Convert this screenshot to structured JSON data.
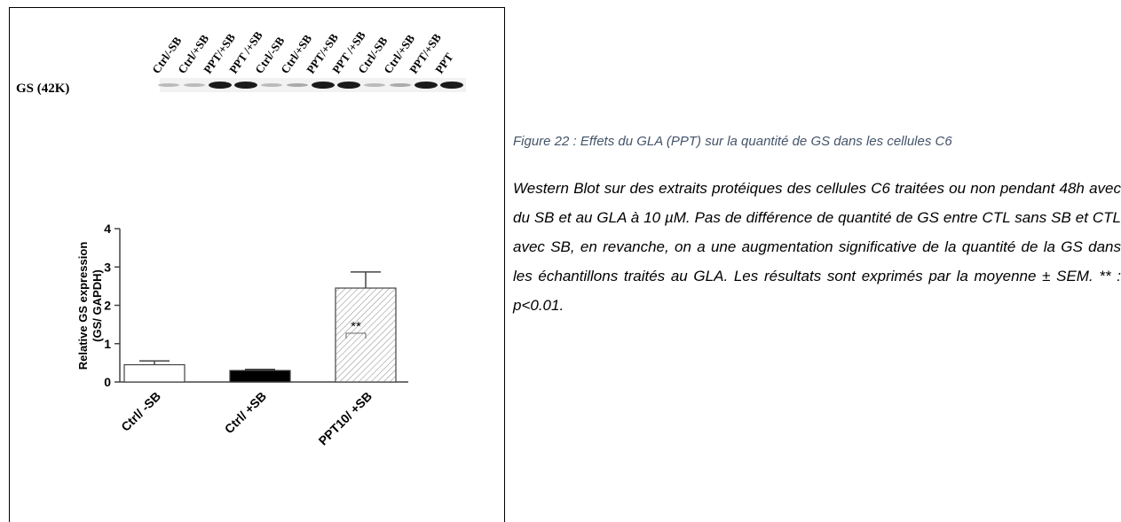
{
  "blot": {
    "label": "GS (42K)",
    "lanes": [
      "Ctrl/-SB",
      "Ctrl/+SB",
      "PPT/+SB",
      "PPT /+SB",
      "Ctrl/-SB",
      "Ctrl/+SB",
      "PPT/+SB",
      "PPT /+SB",
      "Ctrl/-SB",
      "Ctrl/+SB",
      "PPT/+SB",
      "PPT"
    ]
  },
  "chart_data": {
    "type": "bar",
    "ylabel": [
      "Relative GS expression",
      "(GS/ GAPDH)"
    ],
    "categories": [
      "Ctrl/ -SB",
      "Ctrl/ +SB",
      "PPT10/ +SB"
    ],
    "values": [
      0.45,
      0.3,
      2.45
    ],
    "errors": [
      0.1,
      0.03,
      0.42
    ],
    "colors": [
      "#ffffff",
      "#000000",
      "#ffffff"
    ],
    "hatch": [
      false,
      false,
      true
    ],
    "ylim": [
      0,
      4
    ],
    "yticks": [
      0,
      1,
      2,
      3,
      4
    ],
    "significance": {
      "label": "**",
      "between": [
        1,
        2
      ]
    }
  },
  "caption": {
    "title": "Figure 22 : Effets du GLA (PPT) sur la quantité de GS dans les cellules C6",
    "body": "Western Blot sur des extraits protéiques des cellules C6 traitées ou non pendant 48h avec du SB et au GLA à 10 µM. Pas de différence de quantité de GS entre CTL sans SB et CTL avec SB, en revanche, on a une augmentation significative de la quantité de la GS dans les échantillons traités au GLA. Les résultats sont exprimés par la moyenne ± SEM. ** : p<0.01."
  }
}
